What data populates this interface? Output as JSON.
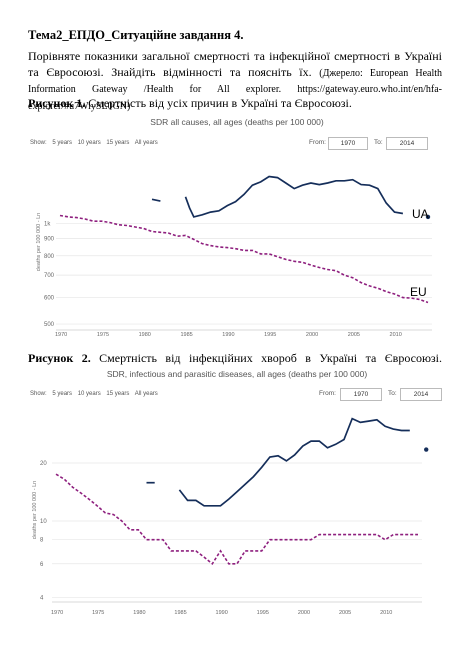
{
  "doc": {
    "heading": "Тема2_ЕПДО_Ситуаційне завдання 4.",
    "para_main": "Порівняте показники загальної смертності та інфекційної смертності в Україні та Євросоюзі. Знайдіть відмінності та поясніть їх.",
    "para_source": "(Джерело: European Health Information Gateway /Health for All explorer. https://gateway.euro.who.int/en/hfa-explorer/#u7WiySL0GN)",
    "fig1_label": "Рисунок 1.",
    "fig1_text": "Смертність від усіх причин в Україні та Євросоюзі.",
    "fig2_label": "Рисунок 2.",
    "fig2_text": "Смертність від інфекційних хвороб в Україні та Євросоюзі."
  },
  "controls": {
    "show_label": "Show:",
    "options": [
      "5 years",
      "10 years",
      "15 years",
      "All years"
    ],
    "from_label": "From:",
    "to_label": "To:",
    "from_value": "1970",
    "to_value": "2014"
  },
  "chart_data": [
    {
      "type": "line",
      "title": "SDR all causes, all ages (deaths per 100 000)",
      "ylabel": "deaths per 100 000 - Ln",
      "y_scale": "log",
      "ylim": [
        480,
        1600
      ],
      "xlim": [
        1970,
        2014
      ],
      "x_ticks": [
        1970,
        1975,
        1980,
        1985,
        1990,
        1995,
        2000,
        2005,
        2010
      ],
      "y_ticks": [
        {
          "v": 1000,
          "label": "1k"
        },
        {
          "v": 900,
          "label": "900"
        },
        {
          "v": 800,
          "label": "800"
        },
        {
          "v": 700,
          "label": "700"
        },
        {
          "v": 600,
          "label": "600"
        },
        {
          "v": 500,
          "label": "500"
        }
      ],
      "annotations": [
        "UA",
        "EU"
      ],
      "series": [
        {
          "name": "UA",
          "color": "#152e5a",
          "style": "solid",
          "segments": [
            [
              [
                1981,
                1180
              ],
              [
                1982,
                1165
              ]
            ],
            [
              [
                1985,
                1200
              ],
              [
                1985.5,
                1110
              ],
              [
                1986,
                1045
              ],
              [
                1987,
                1060
              ],
              [
                1988,
                1080
              ],
              [
                1989,
                1090
              ],
              [
                1990,
                1130
              ],
              [
                1991,
                1160
              ],
              [
                1992,
                1220
              ],
              [
                1993,
                1300
              ],
              [
                1994,
                1330
              ],
              [
                1995,
                1380
              ],
              [
                1996,
                1370
              ],
              [
                1997,
                1320
              ],
              [
                1998,
                1270
              ],
              [
                1999,
                1300
              ],
              [
                2000,
                1320
              ],
              [
                2001,
                1305
              ],
              [
                2002,
                1320
              ],
              [
                2003,
                1340
              ],
              [
                2004,
                1340
              ],
              [
                2005,
                1350
              ],
              [
                2006,
                1305
              ],
              [
                2007,
                1300
              ],
              [
                2008,
                1270
              ],
              [
                2009,
                1150
              ],
              [
                2010,
                1080
              ],
              [
                2011,
                1070
              ]
            ]
          ],
          "isolated": [
            [
              2014,
              1045
            ]
          ]
        },
        {
          "name": "EU",
          "color": "#8e1f7e",
          "style": "dashed",
          "points": [
            [
              1970,
              1055
            ],
            [
              1971,
              1045
            ],
            [
              1972,
              1040
            ],
            [
              1973,
              1030
            ],
            [
              1974,
              1015
            ],
            [
              1975,
              1015
            ],
            [
              1976,
              1005
            ],
            [
              1977,
              990
            ],
            [
              1978,
              985
            ],
            [
              1979,
              975
            ],
            [
              1980,
              965
            ],
            [
              1981,
              945
            ],
            [
              1982,
              940
            ],
            [
              1983,
              935
            ],
            [
              1984,
              915
            ],
            [
              1985,
              920
            ],
            [
              1986,
              895
            ],
            [
              1987,
              870
            ],
            [
              1988,
              858
            ],
            [
              1989,
              850
            ],
            [
              1990,
              846
            ],
            [
              1991,
              840
            ],
            [
              1992,
              830
            ],
            [
              1993,
              830
            ],
            [
              1994,
              810
            ],
            [
              1995,
              810
            ],
            [
              1996,
              795
            ],
            [
              1997,
              780
            ],
            [
              1998,
              770
            ],
            [
              1999,
              765
            ],
            [
              2000,
              750
            ],
            [
              2001,
              738
            ],
            [
              2002,
              728
            ],
            [
              2003,
              722
            ],
            [
              2004,
              700
            ],
            [
              2005,
              688
            ],
            [
              2006,
              665
            ],
            [
              2007,
              650
            ],
            [
              2008,
              640
            ],
            [
              2009,
              625
            ],
            [
              2010,
              615
            ],
            [
              2011,
              600
            ],
            [
              2012,
              598
            ],
            [
              2013,
              592
            ],
            [
              2014,
              580
            ]
          ]
        }
      ]
    },
    {
      "type": "line",
      "title": "SDR, infectious and parasitic diseases, all ages (deaths per 100 000)",
      "ylabel": "deaths per 100 000 - Ln",
      "y_scale": "log",
      "ylim": [
        3.8,
        40
      ],
      "xlim": [
        1970,
        2014
      ],
      "x_ticks": [
        1970,
        1975,
        1980,
        1985,
        1990,
        1995,
        2000,
        2005,
        2010
      ],
      "y_ticks": [
        {
          "v": 20,
          "label": "20"
        },
        {
          "v": 10,
          "label": "10"
        },
        {
          "v": 8,
          "label": "8"
        },
        {
          "v": 6,
          "label": "6"
        },
        {
          "v": 4,
          "label": "4"
        }
      ],
      "series": [
        {
          "name": "UA",
          "color": "#152e5a",
          "style": "solid",
          "segments": [
            [
              [
                1981,
                15.8
              ],
              [
                1982,
                15.8
              ]
            ],
            [
              [
                1985,
                14.5
              ],
              [
                1986,
                12.8
              ],
              [
                1987,
                12.8
              ],
              [
                1988,
                12.0
              ],
              [
                1989,
                12.0
              ],
              [
                1990,
                12.0
              ],
              [
                1991,
                13.0
              ],
              [
                1992,
                14.2
              ],
              [
                1993,
                15.5
              ],
              [
                1994,
                17.0
              ],
              [
                1995,
                19.0
              ],
              [
                1996,
                21.5
              ],
              [
                1997,
                21.8
              ],
              [
                1998,
                20.5
              ],
              [
                1999,
                22.0
              ],
              [
                2000,
                24.5
              ],
              [
                2001,
                26.0
              ],
              [
                2002,
                26.0
              ],
              [
                2003,
                24.0
              ],
              [
                2004,
                25.0
              ],
              [
                2005,
                26.5
              ],
              [
                2006,
                34.0
              ],
              [
                2007,
                32.5
              ],
              [
                2008,
                33.0
              ],
              [
                2009,
                33.5
              ],
              [
                2010,
                31.0
              ],
              [
                2011,
                30.0
              ],
              [
                2012,
                29.5
              ],
              [
                2013,
                29.5
              ]
            ]
          ],
          "isolated": [
            [
              2015,
              23.5
            ]
          ]
        },
        {
          "name": "EU",
          "color": "#8e1f7e",
          "style": "dashed",
          "points": [
            [
              1970,
              17.5
            ],
            [
              1971,
              16.5
            ],
            [
              1972,
              15.0
            ],
            [
              1973,
              14.0
            ],
            [
              1974,
              13.0
            ],
            [
              1975,
              12.0
            ],
            [
              1976,
              11.0
            ],
            [
              1977,
              10.8
            ],
            [
              1978,
              10.0
            ],
            [
              1979,
              9.0
            ],
            [
              1980,
              9.0
            ],
            [
              1981,
              8.0
            ],
            [
              1982,
              8.0
            ],
            [
              1983,
              8.0
            ],
            [
              1984,
              7.0
            ],
            [
              1985,
              7.0
            ],
            [
              1986,
              7.0
            ],
            [
              1987,
              7.0
            ],
            [
              1988,
              6.5
            ],
            [
              1989,
              6.0
            ],
            [
              1990,
              7.0
            ],
            [
              1991,
              6.0
            ],
            [
              1992,
              6.0
            ],
            [
              1993,
              7.0
            ],
            [
              1994,
              7.0
            ],
            [
              1995,
              7.0
            ],
            [
              1996,
              8.0
            ],
            [
              1997,
              8.0
            ],
            [
              1998,
              8.0
            ],
            [
              1999,
              8.0
            ],
            [
              2000,
              8.0
            ],
            [
              2001,
              8.0
            ],
            [
              2002,
              8.5
            ],
            [
              2003,
              8.5
            ],
            [
              2004,
              8.5
            ],
            [
              2005,
              8.5
            ],
            [
              2006,
              8.5
            ],
            [
              2007,
              8.5
            ],
            [
              2008,
              8.5
            ],
            [
              2009,
              8.5
            ],
            [
              2010,
              8.0
            ],
            [
              2011,
              8.5
            ],
            [
              2012,
              8.5
            ],
            [
              2013,
              8.5
            ],
            [
              2014,
              8.5
            ]
          ]
        }
      ]
    }
  ]
}
